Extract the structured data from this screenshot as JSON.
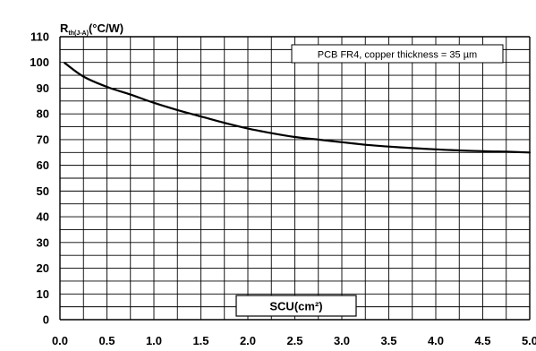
{
  "chart_data": {
    "type": "line",
    "ylabel_main": "R",
    "ylabel_sub": "th(J-A)",
    "ylabel_unit": "(°C/W)",
    "xlabel": "SCU(cm²)",
    "annotation": "PCB FR4, copper thickness = 35 µm",
    "xlim": [
      0,
      5
    ],
    "ylim": [
      0,
      110
    ],
    "x_ticks": [
      "0.0",
      "0.5",
      "1.0",
      "1.5",
      "2.0",
      "2.5",
      "3.0",
      "3.5",
      "4.0",
      "4.5",
      "5.0"
    ],
    "y_ticks": [
      "0",
      "10",
      "20",
      "30",
      "40",
      "50",
      "60",
      "70",
      "80",
      "90",
      "100",
      "110"
    ],
    "grid": true,
    "series": [
      {
        "x": [
          0.05,
          0.25,
          0.5,
          0.75,
          1.0,
          1.25,
          1.5,
          1.75,
          2.0,
          2.25,
          2.5,
          2.75,
          3.0,
          3.25,
          3.5,
          3.75,
          4.0,
          4.25,
          4.5,
          4.75,
          5.0
        ],
        "y": [
          99.8,
          94.5,
          90.5,
          87.5,
          84.3,
          81.5,
          79.0,
          76.5,
          74.3,
          72.5,
          71.0,
          70.0,
          69.0,
          68.0,
          67.3,
          66.7,
          66.2,
          65.8,
          65.5,
          65.3,
          65.0
        ]
      }
    ]
  }
}
